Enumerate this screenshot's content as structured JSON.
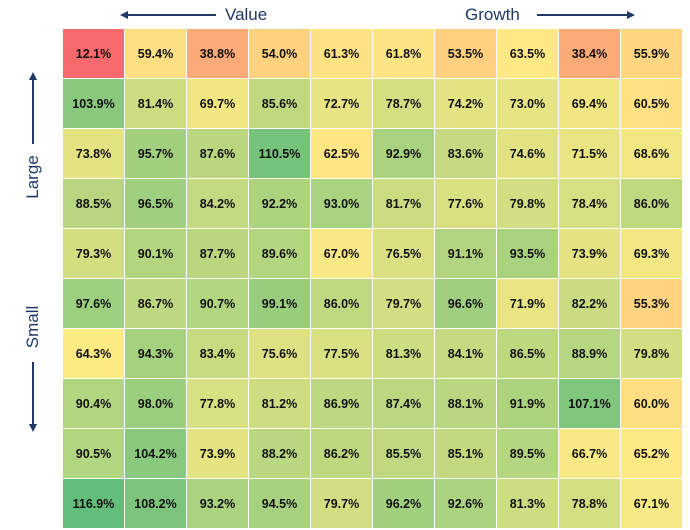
{
  "header": {
    "value_label": "Value",
    "growth_label": "Growth"
  },
  "side": {
    "large_label": "Large",
    "small_label": "Small"
  },
  "chart_data": {
    "type": "heatmap",
    "title": "",
    "xlabel": "",
    "ylabel": "",
    "cell_unit": "%",
    "color_scale": {
      "low": "#f8696b",
      "mid": "#ffeb84",
      "high": "#63be7b",
      "min": 12.1,
      "max": 116.9
    },
    "rows": [
      [
        12.1,
        59.4,
        38.8,
        54.0,
        61.3,
        61.8,
        53.5,
        63.5,
        38.4,
        55.9
      ],
      [
        103.9,
        81.4,
        69.7,
        85.6,
        72.7,
        78.7,
        74.2,
        73.0,
        69.4,
        60.5
      ],
      [
        73.8,
        95.7,
        87.6,
        110.5,
        62.5,
        92.9,
        83.6,
        74.6,
        71.5,
        68.6
      ],
      [
        88.5,
        96.5,
        84.2,
        92.2,
        93.0,
        81.7,
        77.6,
        79.8,
        78.4,
        86.0
      ],
      [
        79.3,
        90.1,
        87.7,
        89.6,
        67.0,
        76.5,
        91.1,
        93.5,
        73.9,
        69.3
      ],
      [
        97.6,
        86.7,
        90.7,
        99.1,
        86.0,
        79.7,
        96.6,
        71.9,
        82.2,
        55.3
      ],
      [
        64.3,
        94.3,
        83.4,
        75.6,
        77.5,
        81.3,
        84.1,
        86.5,
        88.9,
        79.8
      ],
      [
        90.4,
        98.0,
        77.8,
        81.2,
        86.9,
        87.4,
        88.1,
        91.9,
        107.1,
        60.0
      ],
      [
        90.5,
        104.2,
        73.9,
        88.2,
        86.2,
        85.5,
        85.1,
        89.5,
        66.7,
        65.2
      ],
      [
        116.9,
        108.2,
        93.2,
        94.5,
        79.7,
        96.2,
        92.6,
        81.3,
        78.8,
        67.1
      ]
    ]
  }
}
